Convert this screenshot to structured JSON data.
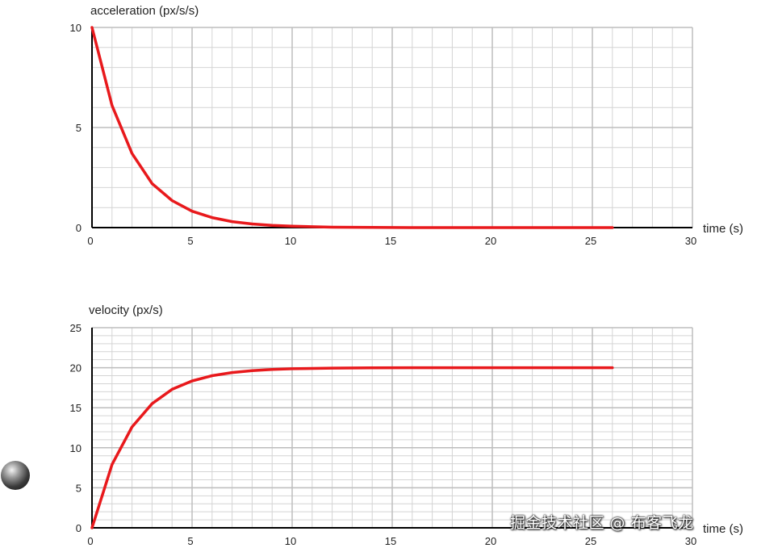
{
  "watermark": "掘金技术社区 @ 布客飞龙",
  "ball_icon": "ball-icon",
  "colors": {
    "curve": "#e8191c",
    "grid": "#d4d4d4",
    "axis": "#000000"
  },
  "chart_data": [
    {
      "type": "line",
      "title": "acceleration (px/s/s)",
      "xlabel": "time (s)",
      "ylabel": "",
      "xlim": [
        0,
        30
      ],
      "ylim": [
        0,
        10
      ],
      "xticks": [
        0,
        5,
        10,
        15,
        20,
        25,
        30
      ],
      "yticks": [
        0,
        5,
        10
      ],
      "grid": true,
      "series": [
        {
          "x": [
            0,
            1,
            2,
            3,
            4,
            5,
            6,
            7,
            8,
            9,
            10,
            12,
            14,
            16,
            18,
            20,
            22,
            24,
            26
          ],
          "y": [
            10,
            6.1,
            3.7,
            2.2,
            1.35,
            0.82,
            0.5,
            0.3,
            0.18,
            0.11,
            0.07,
            0.02,
            0.01,
            0,
            0,
            0,
            0,
            0,
            0
          ]
        }
      ]
    },
    {
      "type": "line",
      "title": "velocity (px/s)",
      "xlabel": "time (s)",
      "ylabel": "",
      "xlim": [
        0,
        30
      ],
      "ylim": [
        0,
        25
      ],
      "xticks": [
        0,
        5,
        10,
        15,
        20,
        25,
        30
      ],
      "yticks": [
        0,
        5,
        10,
        15,
        20,
        25
      ],
      "grid": true,
      "series": [
        {
          "x": [
            0,
            1,
            2,
            3,
            4,
            5,
            6,
            7,
            8,
            9,
            10,
            12,
            14,
            16,
            18,
            20,
            22,
            24,
            26
          ],
          "y": [
            0,
            7.9,
            12.6,
            15.5,
            17.3,
            18.35,
            19.0,
            19.4,
            19.64,
            19.78,
            19.87,
            19.95,
            19.98,
            20,
            20,
            20,
            20,
            20,
            20
          ]
        }
      ]
    }
  ]
}
